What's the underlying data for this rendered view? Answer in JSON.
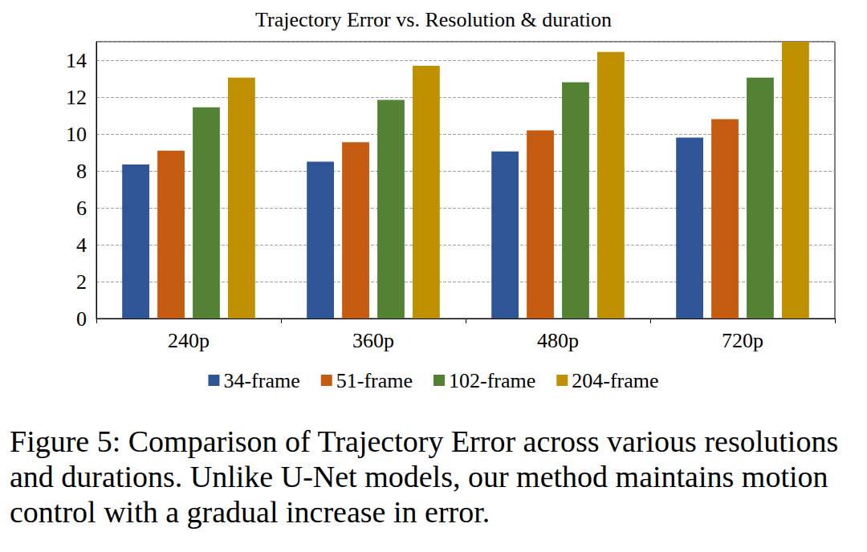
{
  "chart_data": {
    "type": "bar",
    "title": "Trajectory Error vs. Resolution & duration",
    "caption": "Figure 5: Comparison of Trajectory Error across various resolutions and durations. Unlike U-Net models, our method maintains motion control with a gradual increase in error.",
    "categories": [
      "240p",
      "360p",
      "480p",
      "720p"
    ],
    "series": [
      {
        "name": "34-frame",
        "color": "#2f5597",
        "values": [
          8.35,
          8.5,
          9.05,
          9.8
        ]
      },
      {
        "name": "51-frame",
        "color": "#c55a11",
        "values": [
          9.1,
          9.55,
          10.2,
          10.8
        ]
      },
      {
        "name": "102-frame",
        "color": "#548235",
        "values": [
          11.45,
          11.85,
          12.8,
          13.05
        ]
      },
      {
        "name": "204-frame",
        "color": "#bf9000",
        "values": [
          13.05,
          13.7,
          14.45,
          15.0
        ]
      }
    ],
    "ylim": [
      0,
      15
    ],
    "yticks": [
      0,
      2,
      4,
      6,
      8,
      10,
      12,
      14
    ],
    "grid": true,
    "legend": "bottom"
  }
}
